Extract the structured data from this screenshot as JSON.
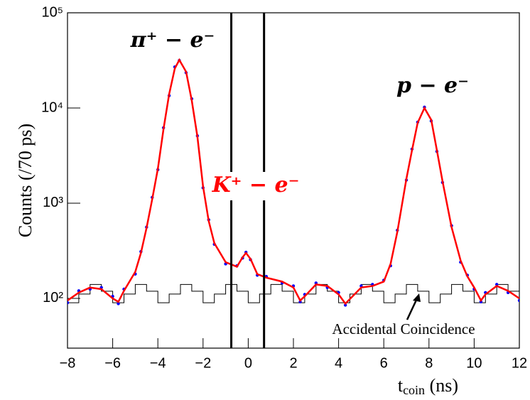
{
  "chart_data": {
    "type": "line",
    "log_y": true,
    "ylabel": "Counts (/70 ps)",
    "xlabel": "t",
    "xlabel_sub": "coin",
    "xlabel_unit": "(ns)",
    "xlim": [
      -8,
      12
    ],
    "xticks": [
      {
        "value": -8,
        "label": "−8"
      },
      {
        "value": -6,
        "label": "−6"
      },
      {
        "value": -4,
        "label": "−4"
      },
      {
        "value": -2,
        "label": "−2"
      },
      0,
      2,
      4,
      6,
      8,
      10,
      12
    ],
    "ylim": [
      30,
      100000
    ],
    "yticks": [
      {
        "value": 100,
        "label": "10²"
      },
      {
        "value": 1000,
        "label": "10³"
      },
      {
        "value": 10000,
        "label": "10⁴"
      },
      {
        "value": 100000,
        "label": "10⁵"
      }
    ],
    "vlines": [
      -0.75,
      0.7
    ],
    "annotations": [
      {
        "text": "π⁺ − e⁻",
        "color": "#000000"
      },
      {
        "text": "K⁺ − e⁻",
        "color": "#ff0000"
      },
      {
        "text": "p − e⁻",
        "color": "#000000"
      },
      {
        "text": "Accidental Coincidence",
        "color": "#000000"
      }
    ],
    "series": [
      {
        "kind": "points",
        "color": "#0000ff",
        "x": [
          -8,
          -7.5,
          -7,
          -6.5,
          -6,
          -5.75,
          -5.5,
          -5,
          -4.75,
          -4.5,
          -4.25,
          -4,
          -3.75,
          -3.5,
          -3.25,
          -3.05,
          -2.75,
          -2.5,
          -2.25,
          -2,
          -1.75,
          -1.5,
          -1,
          -0.5,
          -0.25,
          -0.1,
          0.1,
          0.4,
          0.8,
          1.5,
          2,
          2.3,
          2.5,
          3,
          3.5,
          4,
          4.3,
          5,
          5.5,
          6,
          6.3,
          6.6,
          7,
          7.25,
          7.5,
          7.8,
          8.1,
          8.35,
          8.6,
          9,
          9.4,
          9.7,
          10,
          10.3,
          10.5,
          11,
          11.5,
          12
        ],
        "values": [
          90,
          120,
          125,
          130,
          105,
          88,
          125,
          180,
          310,
          560,
          1150,
          2250,
          6200,
          13500,
          27000,
          31500,
          23500,
          12500,
          5100,
          1450,
          670,
          370,
          230,
          220,
          265,
          305,
          255,
          175,
          170,
          145,
          135,
          92,
          110,
          145,
          130,
          115,
          85,
          135,
          140,
          155,
          220,
          520,
          1750,
          3700,
          7100,
          10200,
          7300,
          3500,
          1650,
          580,
          240,
          175,
          125,
          92,
          115,
          140,
          115,
          95
        ]
      },
      {
        "kind": "line",
        "color": "#ff0000",
        "x": [
          -8,
          -7.5,
          -7,
          -6.5,
          -6,
          -5.75,
          -5.5,
          -5,
          -4.75,
          -4.5,
          -4.25,
          -4,
          -3.75,
          -3.5,
          -3.25,
          -3.05,
          -2.75,
          -2.5,
          -2.25,
          -2,
          -1.75,
          -1.5,
          -1,
          -0.5,
          -0.25,
          -0.1,
          0.1,
          0.4,
          0.8,
          1.5,
          2,
          2.3,
          2.5,
          3,
          3.5,
          4,
          4.3,
          5,
          5.5,
          6,
          6.3,
          6.6,
          7,
          7.25,
          7.5,
          7.8,
          8.1,
          8.35,
          8.6,
          9,
          9.4,
          9.7,
          10,
          10.3,
          10.5,
          11,
          11.5,
          12
        ],
        "values": [
          95,
          115,
          130,
          125,
          100,
          92,
          120,
          190,
          300,
          550,
          1100,
          2300,
          6000,
          14000,
          26000,
          32000,
          24000,
          12000,
          5000,
          1500,
          650,
          380,
          240,
          215,
          270,
          300,
          260,
          180,
          165,
          150,
          130,
          95,
          105,
          140,
          135,
          110,
          88,
          130,
          135,
          150,
          230,
          500,
          1800,
          3600,
          7000,
          10000,
          7500,
          3600,
          1700,
          560,
          250,
          170,
          130,
          95,
          110,
          135,
          120,
          100
        ]
      }
    ],
    "histogram": {
      "color": "#000000",
      "bins": [
        -8,
        -7.5,
        -7,
        -6.5,
        -6,
        -5.5,
        -5,
        -4.5,
        -4,
        -3.5,
        -3,
        -2.5,
        -2,
        -1.5,
        -1,
        -0.5,
        0,
        0.5,
        1,
        1.5,
        2,
        2.5,
        3,
        3.5,
        4,
        4.5,
        5,
        5.5,
        6,
        6.5,
        7,
        7.5,
        8,
        8.5,
        9,
        9.5,
        10,
        10.5,
        11,
        11.5,
        12
      ],
      "counts": [
        90,
        111,
        140,
        119,
        90,
        111,
        140,
        119,
        90,
        111,
        140,
        119,
        90,
        111,
        140,
        119,
        90,
        111,
        140,
        119,
        90,
        111,
        140,
        119,
        90,
        111,
        140,
        119,
        90,
        111,
        140,
        119,
        90,
        111,
        140,
        119,
        90,
        111,
        140,
        119
      ]
    }
  }
}
